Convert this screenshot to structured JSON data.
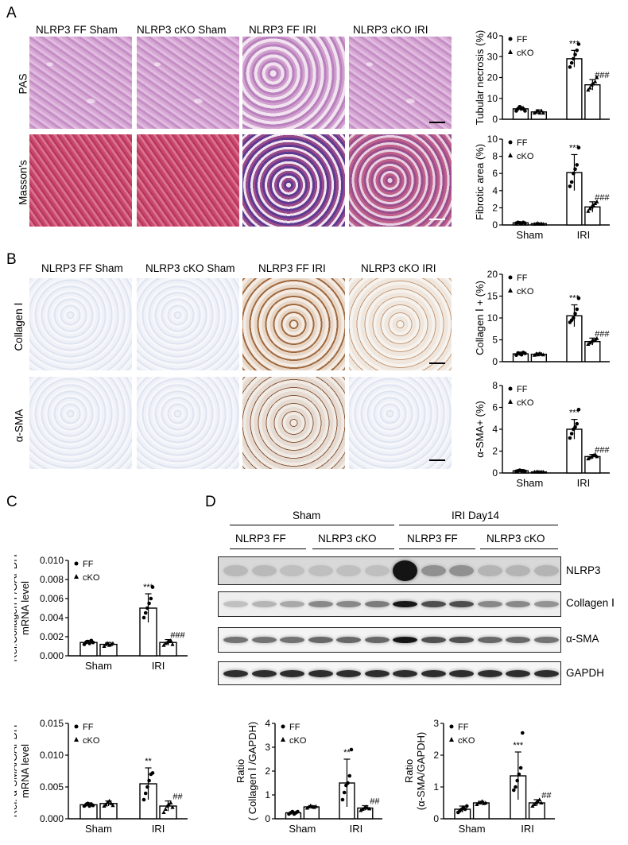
{
  "panels": {
    "A": "A",
    "B": "B",
    "C": "C",
    "D": "D"
  },
  "columns": [
    "NLRP3 FF Sham",
    "NLRP3 cKO Sham",
    "NLRP3 FF IRI",
    "NLRP3 cKO IRI"
  ],
  "row_labels": {
    "pas": "PAS",
    "masson": "Masson's",
    "collagen": "Collagen Ⅰ",
    "asma": "α-SMA"
  },
  "blot": {
    "group_sham": "Sham",
    "group_iri": "IRI Day14",
    "sub_labels": [
      "NLRP3 FF",
      "NLRP3 cKO",
      "NLRP3 FF",
      "NLRP3 cKO"
    ],
    "bands": [
      "NLRP3",
      "Collagen Ⅰ",
      "α-SMA",
      "GAPDH"
    ]
  },
  "chart_data": [
    {
      "id": "tubular",
      "type": "bar",
      "ylabel": "Tubular necrosis (%)",
      "ylim": [
        0,
        40
      ],
      "yticks": [
        "0",
        "10",
        "20",
        "30",
        "40"
      ],
      "categories": [
        "Sham",
        "IRI"
      ],
      "show_xticks": false,
      "legend": [
        "FF",
        "cKO"
      ],
      "series": [
        {
          "name": "FF",
          "values": [
            5,
            29
          ],
          "err": [
            1,
            4
          ],
          "points": [
            [
              4,
              5,
              6,
              5,
              5,
              4
            ],
            [
              25,
              27,
              29,
              31,
              33,
              36
            ]
          ]
        },
        {
          "name": "cKO",
          "values": [
            3.5,
            16.5
          ],
          "err": [
            1,
            2.5
          ],
          "points": [
            [
              3,
              3.5,
              4,
              3,
              4,
              3
            ],
            [
              14,
              15,
              16.5,
              17,
              18,
              20
            ]
          ]
        }
      ],
      "annotations": [
        "***",
        "###"
      ]
    },
    {
      "id": "fibrotic",
      "type": "bar",
      "ylabel": "Fibrotic area (%)",
      "ylim": [
        0,
        10
      ],
      "yticks": [
        "0",
        "2",
        "4",
        "6",
        "8",
        "10"
      ],
      "categories": [
        "Sham",
        "IRI"
      ],
      "show_xticks": true,
      "legend": [
        "FF",
        "cKO"
      ],
      "series": [
        {
          "name": "FF",
          "values": [
            0.25,
            6.1
          ],
          "err": [
            0.1,
            2.1
          ],
          "points": [
            [
              0.2,
              0.3,
              0.25,
              0.2,
              0.3,
              0.2
            ],
            [
              4.5,
              5,
              6,
              6.5,
              7,
              9
            ]
          ]
        },
        {
          "name": "cKO",
          "values": [
            0.15,
            2.1
          ],
          "err": [
            0.05,
            0.6
          ],
          "points": [
            [
              0.1,
              0.15,
              0.2,
              0.1,
              0.15,
              0.1
            ],
            [
              1.6,
              1.9,
              2.1,
              2.3,
              2.5,
              2.7
            ]
          ]
        }
      ],
      "annotations": [
        "***",
        "###"
      ]
    },
    {
      "id": "collagen",
      "type": "bar",
      "ylabel": "Collagen Ⅰ + (%)",
      "ylim": [
        0,
        20
      ],
      "yticks": [
        "0",
        "5",
        "10",
        "15",
        "20"
      ],
      "categories": [
        "Sham",
        "IRI"
      ],
      "show_xticks": false,
      "legend": [
        "FF",
        "cKO"
      ],
      "series": [
        {
          "name": "FF",
          "values": [
            1.8,
            10.5
          ],
          "err": [
            0.4,
            2.5
          ],
          "points": [
            [
              1.5,
              2,
              1.8,
              1.6,
              2.1,
              1.9
            ],
            [
              9,
              9.5,
              10,
              11,
              12,
              14.5
            ]
          ]
        },
        {
          "name": "cKO",
          "values": [
            1.7,
            4.6
          ],
          "err": [
            0.3,
            0.8
          ],
          "points": [
            [
              1.5,
              1.8,
              1.6,
              1.9,
              1.7,
              1.6
            ],
            [
              4,
              4.3,
              4.6,
              4.8,
              5,
              5.3
            ]
          ]
        }
      ],
      "annotations": [
        "***",
        "###"
      ]
    },
    {
      "id": "asma",
      "type": "bar",
      "ylabel": "α-SMA+ (%)",
      "ylim": [
        0,
        8
      ],
      "yticks": [
        "0",
        "2",
        "4",
        "6",
        "8"
      ],
      "categories": [
        "Sham",
        "IRI"
      ],
      "show_xticks": true,
      "legend": [
        "FF",
        "cKO"
      ],
      "series": [
        {
          "name": "FF",
          "values": [
            0.2,
            4.0
          ],
          "err": [
            0.05,
            0.9
          ],
          "points": [
            [
              0.15,
              0.2,
              0.25,
              0.2,
              0.2,
              0.15
            ],
            [
              3.2,
              3.6,
              4,
              4.2,
              4.5,
              5.8
            ]
          ]
        },
        {
          "name": "cKO",
          "values": [
            0.1,
            1.5
          ],
          "err": [
            0.05,
            0.2
          ],
          "points": [
            [
              0.1,
              0.1,
              0.12,
              0.08,
              0.1,
              0.1
            ],
            [
              1.3,
              1.4,
              1.5,
              1.6,
              1.7,
              1.5
            ]
          ]
        }
      ],
      "annotations": [
        "***",
        "###"
      ]
    },
    {
      "id": "col_mrna",
      "type": "bar",
      "ylabel": "Rel.Collagen Ⅰ /GAPDH mRNA level",
      "ylim": [
        0,
        0.01
      ],
      "yticks": [
        "0.000",
        "0.002",
        "0.004",
        "0.006",
        "0.008",
        "0.010"
      ],
      "categories": [
        "Sham",
        "IRI"
      ],
      "show_xticks": true,
      "legend": [
        "FF",
        "cKO"
      ],
      "series": [
        {
          "name": "FF",
          "values": [
            0.0014,
            0.005
          ],
          "err": [
            0.0002,
            0.0015
          ],
          "points": [
            [
              0.0012,
              0.0014,
              0.0015,
              0.0013,
              0.0016,
              0.0014
            ],
            [
              0.004,
              0.0045,
              0.005,
              0.0055,
              0.006,
              0.0072
            ]
          ]
        },
        {
          "name": "cKO",
          "values": [
            0.0012,
            0.0014
          ],
          "err": [
            0.0002,
            0.0003
          ],
          "points": [
            [
              0.001,
              0.0012,
              0.0013,
              0.0011,
              0.0012,
              0.0013
            ],
            [
              0.0011,
              0.0013,
              0.0014,
              0.0015,
              0.0016,
              0.0012
            ]
          ]
        }
      ],
      "annotations": [
        "***",
        "###"
      ]
    },
    {
      "id": "asma_mrna",
      "type": "bar",
      "ylabel": "Rel. α-SMA/GAPDH mRNA level",
      "ylim": [
        0,
        0.015
      ],
      "yticks": [
        "0.000",
        "0.005",
        "0.010",
        "0.015"
      ],
      "categories": [
        "Sham",
        "IRI"
      ],
      "show_xticks": true,
      "legend": [
        "FF",
        "cKO"
      ],
      "series": [
        {
          "name": "FF",
          "values": [
            0.0022,
            0.0055
          ],
          "err": [
            0.0003,
            0.0025
          ],
          "points": [
            [
              0.002,
              0.0022,
              0.0024,
              0.002,
              0.0023,
              0.0021
            ],
            [
              0.003,
              0.004,
              0.005,
              0.006,
              0.007,
              0.0072
            ]
          ]
        },
        {
          "name": "cKO",
          "values": [
            0.0024,
            0.002
          ],
          "err": [
            0.0004,
            0.0008
          ],
          "points": [
            [
              0.002,
              0.0022,
              0.0026,
              0.0028,
              0.0024,
              0.0021
            ],
            [
              0.001,
              0.0015,
              0.002,
              0.0022,
              0.0025,
              0.0018
            ]
          ]
        }
      ],
      "annotations": [
        "**",
        "##"
      ]
    },
    {
      "id": "ratio_col",
      "type": "bar",
      "ylabel": "Ratio ( Collagen Ⅰ /GAPDH)",
      "ylim": [
        0,
        4
      ],
      "yticks": [
        "0",
        "1",
        "2",
        "3",
        "4"
      ],
      "categories": [
        "Sham",
        "IRI"
      ],
      "show_xticks": true,
      "legend": [
        "FF",
        "cKO"
      ],
      "series": [
        {
          "name": "FF",
          "values": [
            0.25,
            1.5
          ],
          "err": [
            0.05,
            1.0
          ],
          "points": [
            [
              0.2,
              0.25,
              0.3,
              0.2,
              0.25,
              0.3
            ],
            [
              0.8,
              1.1,
              1.4,
              1.5,
              1.8,
              2.9
            ]
          ]
        },
        {
          "name": "cKO",
          "values": [
            0.5,
            0.45
          ],
          "err": [
            0.05,
            0.1
          ],
          "points": [
            [
              0.45,
              0.5,
              0.55,
              0.5,
              0.48,
              0.52
            ],
            [
              0.35,
              0.4,
              0.45,
              0.5,
              0.45,
              0.42
            ]
          ]
        }
      ],
      "annotations": [
        "**",
        "##"
      ]
    },
    {
      "id": "ratio_asma",
      "type": "bar",
      "ylabel": "Ratio (α-SMA/GAPDH)",
      "ylim": [
        0,
        3
      ],
      "yticks": [
        "0",
        "1",
        "2",
        "3"
      ],
      "categories": [
        "Sham",
        "IRI"
      ],
      "show_xticks": true,
      "legend": [
        "FF",
        "cKO"
      ],
      "series": [
        {
          "name": "FF",
          "values": [
            0.3,
            1.35
          ],
          "err": [
            0.1,
            0.75
          ],
          "points": [
            [
              0.2,
              0.25,
              0.3,
              0.35,
              0.3,
              0.4
            ],
            [
              0.9,
              1.0,
              1.2,
              1.4,
              1.6,
              2.7
            ]
          ]
        },
        {
          "name": "cKO",
          "values": [
            0.5,
            0.5
          ],
          "err": [
            0.05,
            0.1
          ],
          "points": [
            [
              0.45,
              0.5,
              0.5,
              0.55,
              0.48,
              0.5
            ],
            [
              0.4,
              0.45,
              0.5,
              0.55,
              0.6,
              0.5
            ]
          ]
        }
      ],
      "annotations": [
        "***",
        "##"
      ]
    }
  ]
}
